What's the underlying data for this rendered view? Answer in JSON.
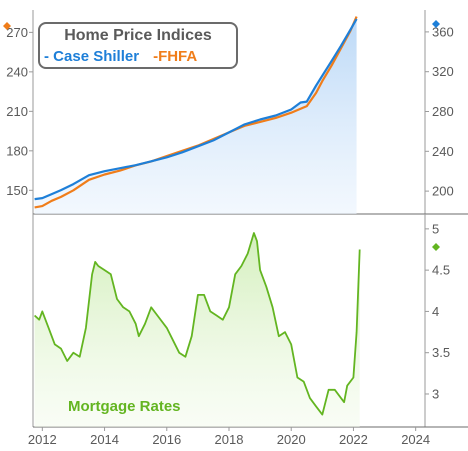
{
  "chart_data": [
    {
      "type": "line",
      "title": "Home Price Indices",
      "legend": [
        "Case Shiller",
        "FHFA"
      ],
      "legend_placement": "top-left",
      "left_axis_ticks": [
        "150",
        "180",
        "210",
        "240",
        "270"
      ],
      "right_axis_ticks": [
        "200",
        "240",
        "280",
        "320",
        "360"
      ],
      "left_ylim": [
        132,
        287
      ],
      "right_ylim": [
        177,
        382
      ],
      "xlim": [
        2011.7,
        2024.3
      ],
      "x_ticks": [
        "2012",
        "2014",
        "2016",
        "2018",
        "2020",
        "2022",
        "2024"
      ],
      "series": [
        {
          "name": "FHFA",
          "axis": "left",
          "color": "#f07d1a",
          "x": [
            2011.75,
            2012.0,
            2012.3,
            2012.6,
            2013.0,
            2013.5,
            2014.0,
            2014.5,
            2015.0,
            2015.5,
            2016.0,
            2016.5,
            2017.0,
            2017.5,
            2018.0,
            2018.5,
            2019.0,
            2019.5,
            2020.0,
            2020.3,
            2020.5,
            2020.8,
            2021.0,
            2021.3,
            2021.6,
            2021.9,
            2022.1
          ],
          "values": [
            137,
            138,
            142,
            145,
            150,
            158,
            162,
            165,
            169,
            172,
            176,
            180,
            184,
            189,
            194,
            199,
            202,
            205,
            209,
            212,
            214,
            224,
            233,
            245,
            258,
            271,
            282
          ]
        },
        {
          "name": "Case Shiller",
          "axis": "right",
          "color": "#1e7fd8",
          "x": [
            2011.75,
            2012.0,
            2012.3,
            2012.6,
            2013.0,
            2013.5,
            2014.0,
            2014.5,
            2015.0,
            2015.5,
            2016.0,
            2016.5,
            2017.0,
            2017.5,
            2018.0,
            2018.5,
            2019.0,
            2019.5,
            2020.0,
            2020.3,
            2020.5,
            2020.8,
            2021.0,
            2021.3,
            2021.6,
            2021.9,
            2022.1
          ],
          "values": [
            192,
            193,
            197,
            201,
            207,
            216,
            220,
            223,
            226,
            230,
            234,
            239,
            245,
            251,
            259,
            267,
            272,
            276,
            282,
            289,
            290,
            306,
            316,
            331,
            346,
            362,
            373
          ]
        }
      ]
    },
    {
      "type": "area",
      "title": "Mortgage Rates",
      "right_axis_ticks": [
        "3",
        "3.5",
        "4",
        "4.5",
        "5"
      ],
      "ylim": [
        2.6,
        5.18
      ],
      "xlim": [
        2011.7,
        2024.3
      ],
      "series": [
        {
          "name": "Mortgage Rates",
          "color": "#63b521",
          "x": [
            2011.75,
            2011.9,
            2012.0,
            2012.2,
            2012.4,
            2012.6,
            2012.8,
            2013.0,
            2013.2,
            2013.4,
            2013.6,
            2013.7,
            2013.8,
            2014.0,
            2014.2,
            2014.4,
            2014.6,
            2014.8,
            2015.0,
            2015.1,
            2015.3,
            2015.5,
            2015.7,
            2016.0,
            2016.2,
            2016.4,
            2016.6,
            2016.8,
            2017.0,
            2017.2,
            2017.4,
            2017.6,
            2017.8,
            2018.0,
            2018.2,
            2018.4,
            2018.6,
            2018.8,
            2018.9,
            2019.0,
            2019.2,
            2019.4,
            2019.6,
            2019.8,
            2020.0,
            2020.2,
            2020.4,
            2020.6,
            2020.8,
            2021.0,
            2021.2,
            2021.4,
            2021.6,
            2021.7,
            2021.8,
            2022.0,
            2022.1,
            2022.2
          ],
          "values": [
            3.95,
            3.9,
            4.0,
            3.8,
            3.6,
            3.55,
            3.4,
            3.5,
            3.45,
            3.8,
            4.45,
            4.6,
            4.55,
            4.5,
            4.45,
            4.15,
            4.05,
            4.0,
            3.85,
            3.7,
            3.85,
            4.05,
            3.95,
            3.8,
            3.65,
            3.5,
            3.45,
            3.7,
            4.2,
            4.2,
            4.0,
            3.95,
            3.9,
            4.05,
            4.45,
            4.55,
            4.7,
            4.95,
            4.85,
            4.5,
            4.3,
            4.05,
            3.7,
            3.75,
            3.6,
            3.2,
            3.15,
            2.95,
            2.85,
            2.75,
            3.05,
            3.05,
            2.95,
            2.9,
            3.1,
            3.2,
            3.75,
            4.75
          ]
        }
      ]
    }
  ]
}
